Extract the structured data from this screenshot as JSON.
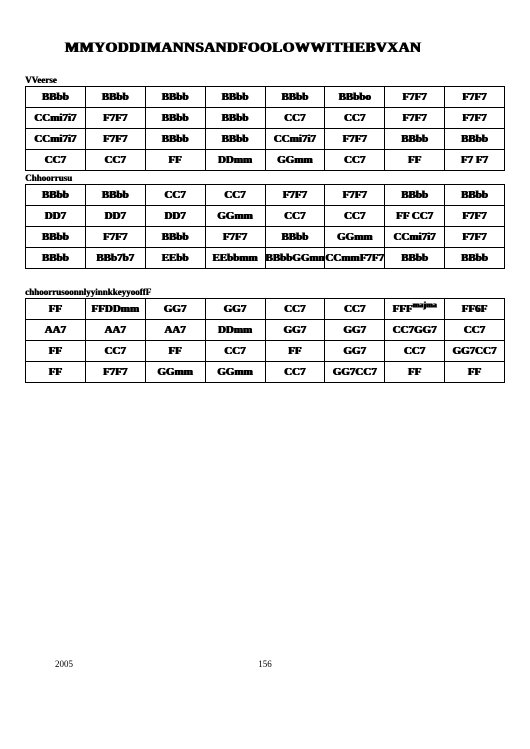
{
  "title": "MMYODDIMANNSANDFOOLOWWITHEBVXAN",
  "sections": [
    {
      "label": "VVeerse",
      "rows": [
        [
          "BBbb",
          "BBbb",
          "BBbb",
          "BBbb",
          "BBbb",
          "BBbbo",
          "F7F7",
          "F7F7"
        ],
        [
          "CCmi7i7",
          "F7F7",
          "BBbb",
          "BBbb",
          "CC7",
          "CC7",
          "F7F7",
          "F7F7"
        ],
        [
          "CCmi7i7",
          "F7F7",
          "BBbb",
          "BBbb",
          "CCmi7i7",
          "F7F7",
          "BBbb",
          "BBbb"
        ],
        [
          "CC7",
          "CC7",
          "FF",
          "DDmm",
          "GGmm",
          "CC7",
          "FF",
          "F7 F7"
        ]
      ]
    },
    {
      "label": "Chhoorrusu",
      "rows": [
        [
          "BBbb",
          "BBbb",
          "CC7",
          "CC7",
          "F7F7",
          "F7F7",
          "BBbb",
          "BBbb"
        ],
        [
          "DD7",
          "DD7",
          "DD7",
          "GGmm",
          "CC7",
          "CC7",
          "FF CC7",
          "F7F7"
        ],
        [
          "BBbb",
          "F7F7",
          "BBbb",
          "F7F7",
          "BBbb",
          "GGmm",
          "CCmi7i7",
          "F7F7"
        ],
        [
          "BBbb",
          "BBb7b7",
          "EEbb",
          "EEbbmm",
          "BBbbGGmm",
          "CCmmF7F7",
          "BBbb",
          "BBbb"
        ]
      ]
    }
  ],
  "third": {
    "label": "chhoorrusoonnlyyinnkkeyyooffF",
    "rows": [
      [
        "FF",
        "FFDDmm",
        "GG7",
        "GG7",
        "CC7",
        "CC7",
        "FFF",
        "FF6F"
      ],
      [
        "AA7",
        "AA7",
        "AA7",
        "DDmm",
        "GG7",
        "GG7",
        "CC7GG7",
        "CC7"
      ],
      [
        "FF",
        "CC7",
        "FF",
        "CC7",
        "FF",
        "GG7",
        "CC7",
        "GG7CC7"
      ],
      [
        "FF",
        "F7F7",
        "GGmm",
        "GGmm",
        "CC7",
        "GG7CC7",
        "FF",
        "FF"
      ]
    ],
    "superscript": "majma",
    "sup_row": 0,
    "sup_col": 6
  },
  "footer": {
    "year": "2005",
    "page": "156"
  },
  "colors": {
    "bg": "#ffffff",
    "text": "#000000",
    "border": "#000000"
  }
}
